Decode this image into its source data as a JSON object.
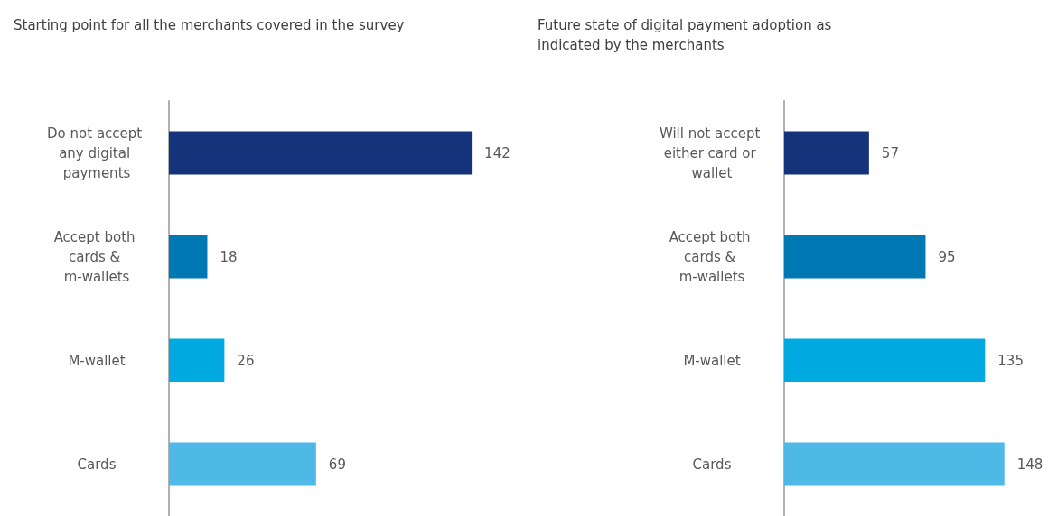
{
  "chart_data": [
    {
      "type": "bar",
      "orientation": "horizontal",
      "title": "Starting point for all the merchants covered in the survey",
      "categories": [
        "Do not accept any digital payments",
        "Accept both cards & m-wallets",
        "M-wallet",
        "Cards"
      ],
      "values": [
        142,
        18,
        26,
        69
      ],
      "colors": [
        "#14337a",
        "#0078b4",
        "#00a9e0",
        "#4eb8e6"
      ],
      "data_labels": true
    },
    {
      "type": "bar",
      "orientation": "horizontal",
      "title": "Future state of digital payment adoption as indicated by the merchants",
      "categories": [
        "Will not accept either card or wallet",
        "Accept both cards & m-wallets",
        "M-wallet",
        "Cards"
      ],
      "values": [
        57,
        95,
        135,
        148
      ],
      "colors": [
        "#14337a",
        "#0078b4",
        "#00a9e0",
        "#4eb8e6"
      ],
      "data_labels": true
    }
  ]
}
